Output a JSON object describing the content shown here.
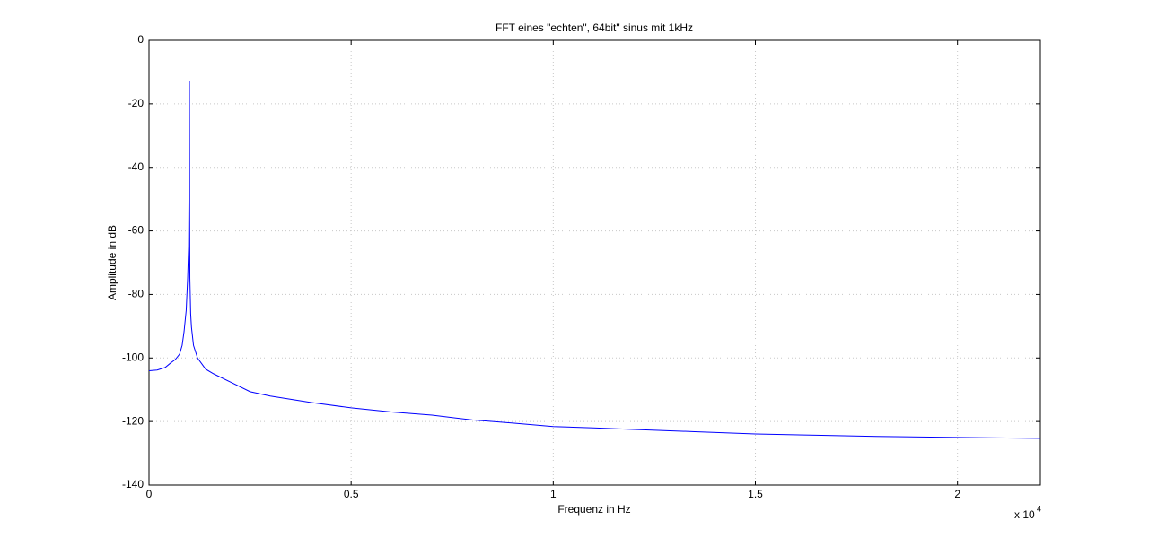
{
  "chart_data": {
    "type": "line",
    "title": "FFT eines \"echten\", 64bit\" sinus mit 1kHz",
    "x_label": "Frequenz in Hz",
    "y_label": "Amplitude in dB",
    "x_multiplier": {
      "base": "x 10",
      "exponent": "4"
    },
    "xlim": [
      0,
      22050
    ],
    "ylim": [
      -140,
      0
    ],
    "xticks": [
      0,
      {
        "value": 5000,
        "label": "0.5"
      },
      {
        "value": 10000,
        "label": "1"
      },
      {
        "value": 15000,
        "label": "1.5"
      },
      {
        "value": 20000,
        "label": "2"
      }
    ],
    "yticks": [
      -140,
      -120,
      -100,
      -80,
      -60,
      -40,
      -20,
      0
    ],
    "grid": true,
    "series": [
      {
        "color": "#0000ff",
        "x": [
          0,
          200,
          400,
          533,
          650,
          756,
          820,
          867,
          920,
          956,
          980,
          989,
          995,
          1000,
          1005,
          1011,
          1030,
          1050,
          1100,
          1200,
          1400,
          1600,
          2000,
          2500,
          3000,
          4000,
          5000,
          6000,
          7000,
          8000,
          9000,
          10000,
          11000,
          12000,
          13500,
          15000,
          16500,
          18000,
          20000,
          22050
        ],
        "values": [
          -104,
          -103.8,
          -103,
          -101.6,
          -100.5,
          -98.8,
          -96,
          -91.7,
          -85,
          -74.8,
          -65,
          -48.7,
          -60,
          -12.7,
          -55,
          -75,
          -86,
          -90.3,
          -96,
          -100,
          -103.5,
          -105,
          -107.5,
          -110.6,
          -112,
          -114,
          -115.7,
          -117,
          -118,
          -119.5,
          -120.5,
          -121.6,
          -122,
          -122.5,
          -123.2,
          -123.9,
          -124.3,
          -124.7,
          -125,
          -125.3
        ]
      }
    ]
  }
}
